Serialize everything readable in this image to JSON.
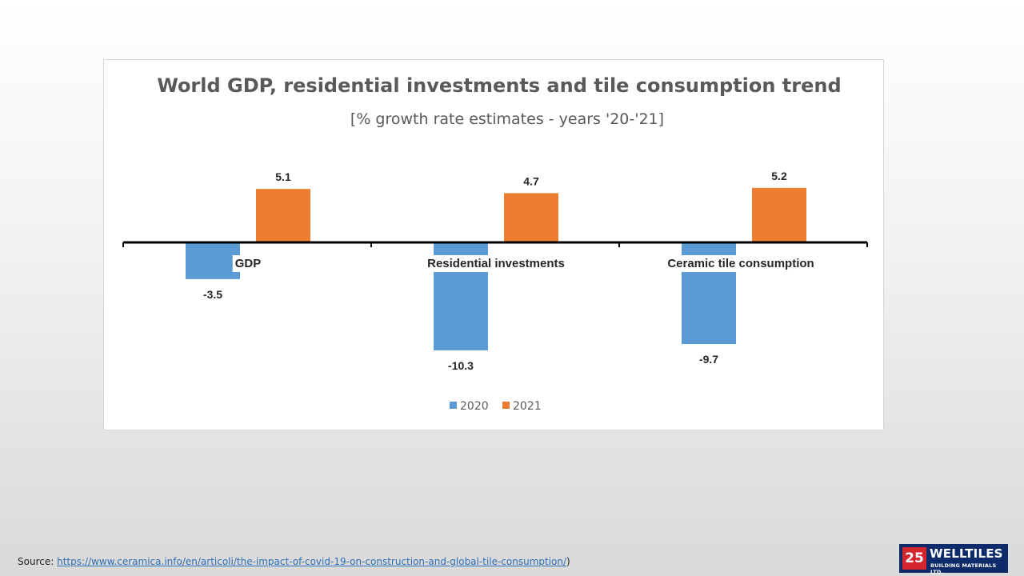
{
  "chart_data": {
    "type": "bar",
    "title": "World GDP, residential  investments  and tile consumption  trend",
    "subtitle": "[% growth rate estimates - years '20-'21]",
    "categories": [
      "GDP",
      "Residential investments",
      "Ceramic tile consumption"
    ],
    "series": [
      {
        "name": "2020",
        "values": [
          -3.5,
          -10.3,
          -9.7
        ],
        "labels": [
          "-3.5",
          "-10.3",
          "-9.7"
        ],
        "color": "#5b9bd5"
      },
      {
        "name": "2021",
        "values": [
          5.1,
          4.7,
          5.2
        ],
        "labels": [
          "5.1",
          "4.7",
          "5.2"
        ],
        "color": "#ed7d31"
      }
    ],
    "xlabel": "",
    "ylabel": "",
    "grid": false,
    "legend_position": "bottom"
  },
  "footer": {
    "source_label": "Source:",
    "source_url": "https://www.ceramica.info/en/articoli/the-impact-of-covid-19-on-construction-and-global-tile-consumption/",
    "trailing": ")"
  },
  "logo": {
    "mark": "25",
    "name": "WELLTILES",
    "tagline": "BUILDING MATERIALS LTD."
  }
}
